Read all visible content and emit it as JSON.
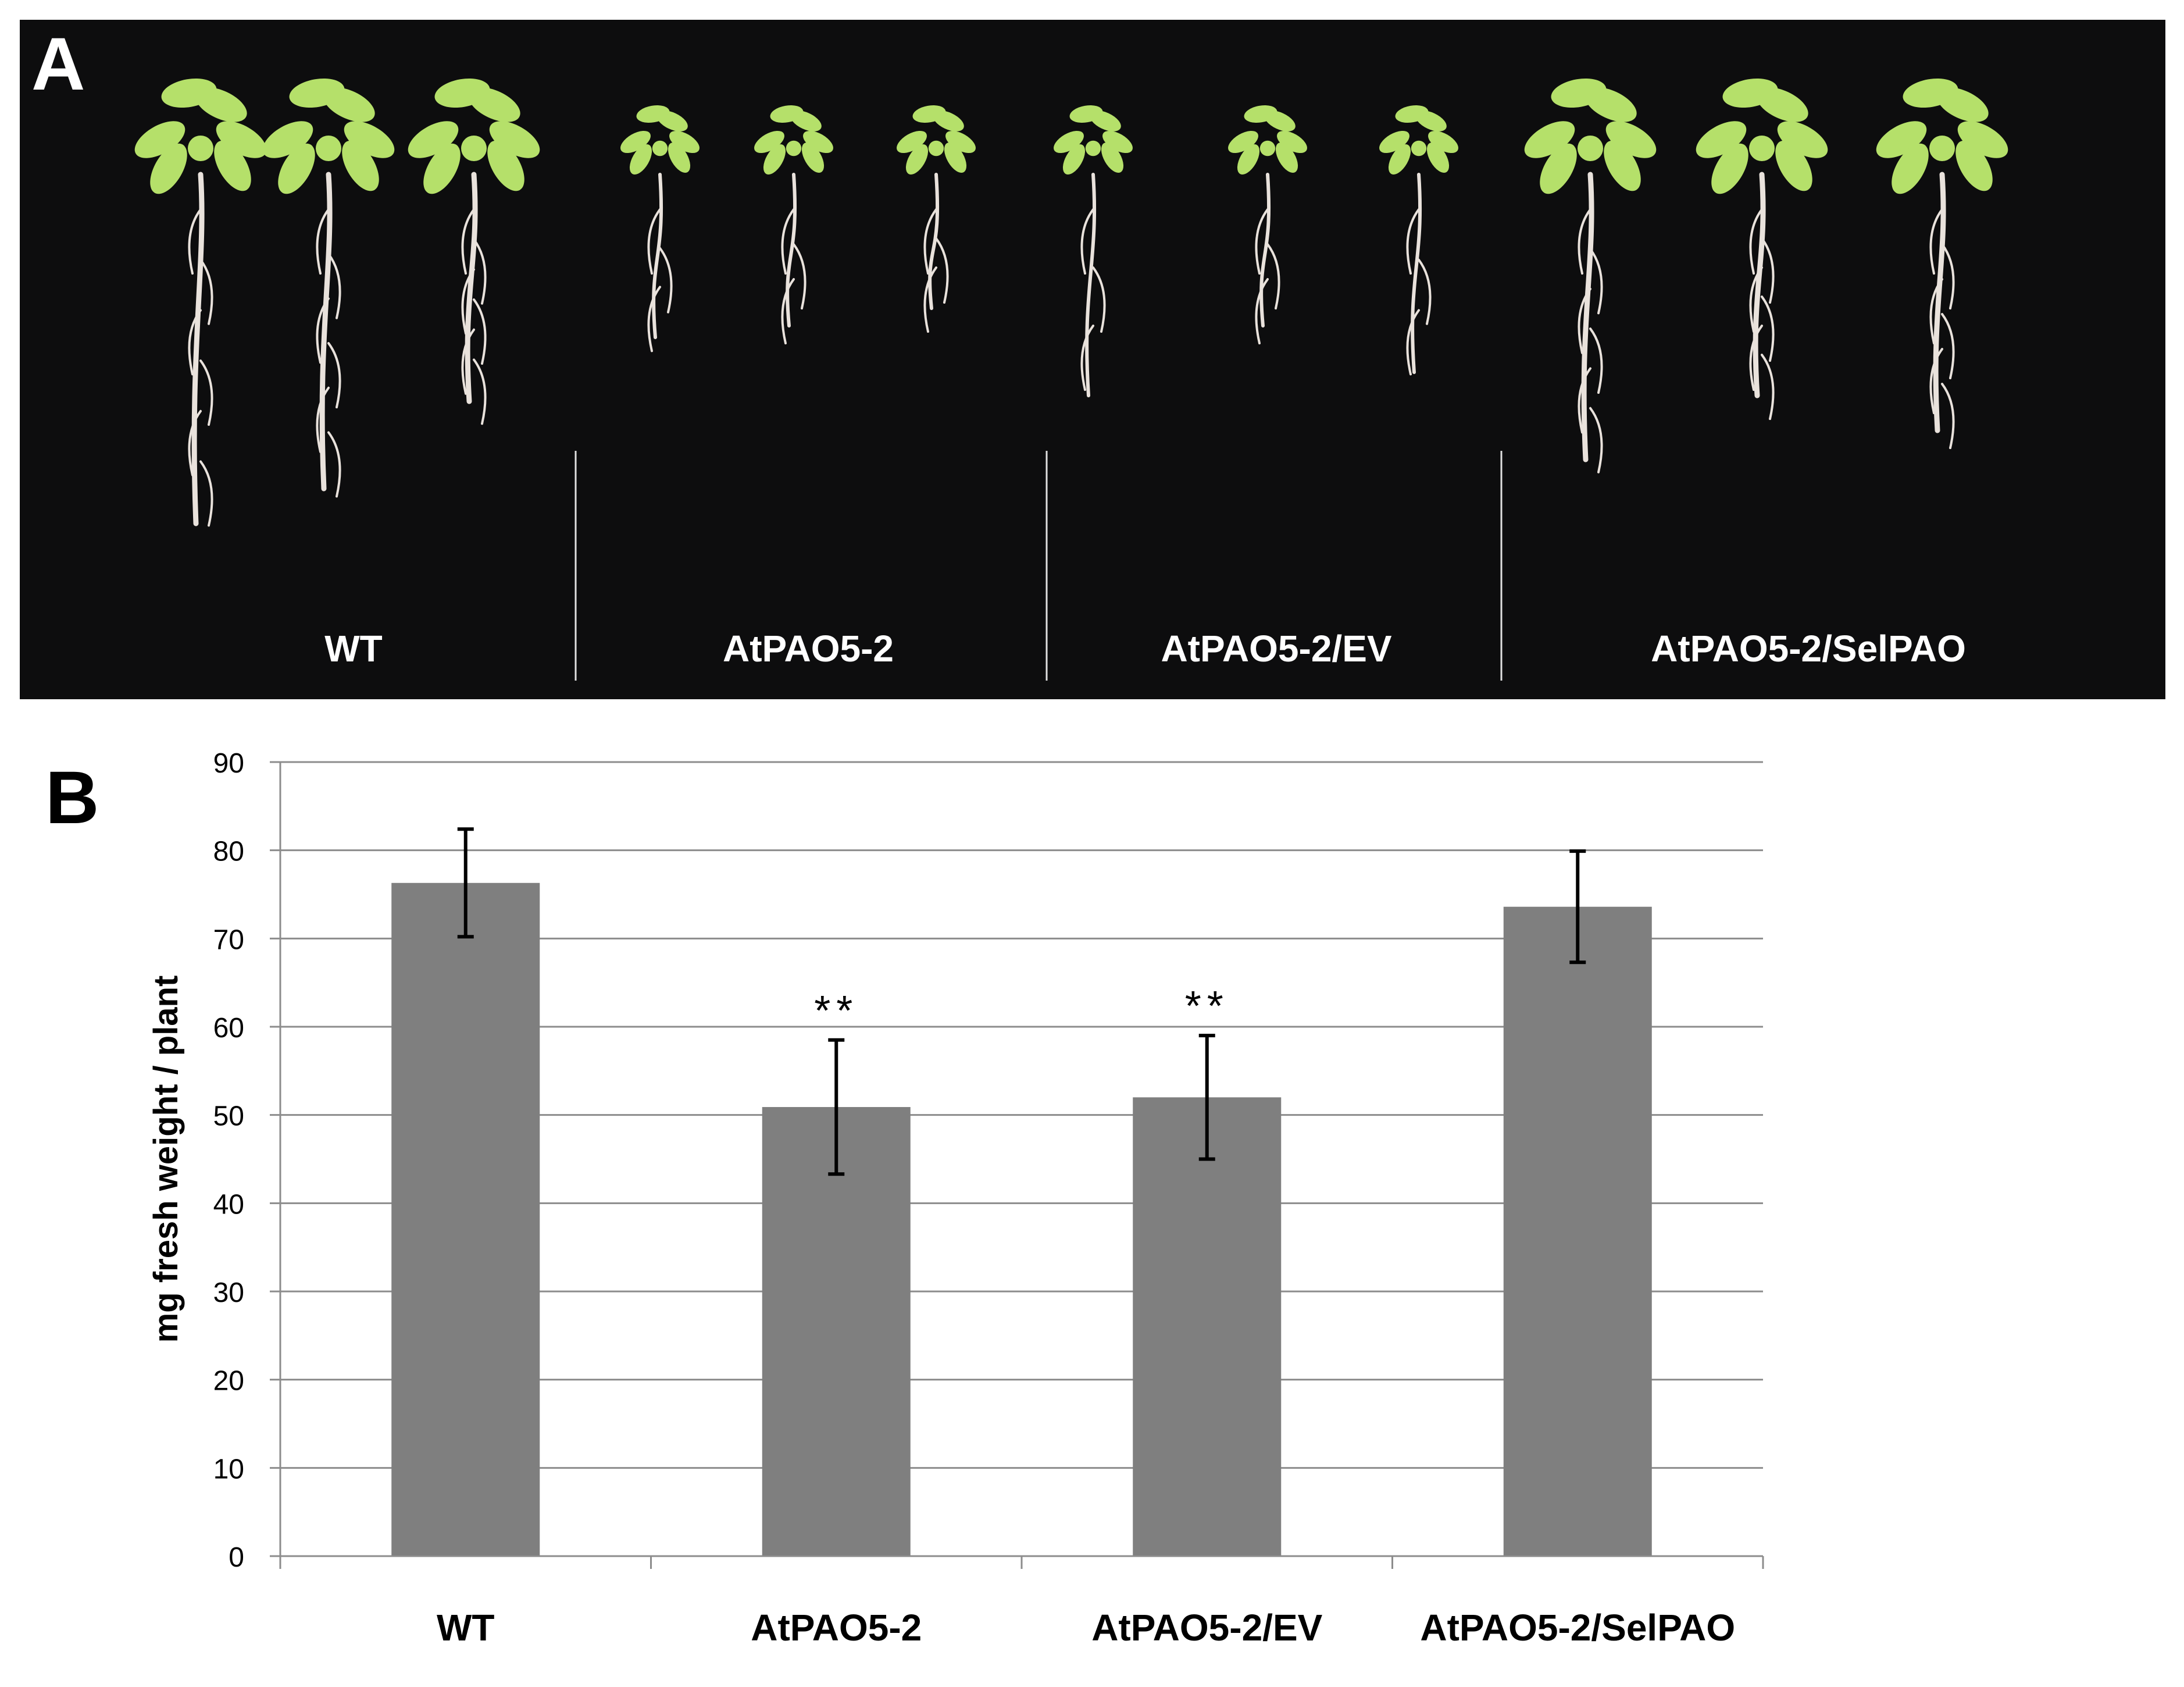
{
  "panel_a": {
    "letter": "A",
    "group_labels": [
      "WT",
      "AtPAO5-2",
      "AtPAO5-2/EV",
      "AtPAO5-2/SelPAO"
    ],
    "background_color": "#0d0d0e",
    "leaf_color": "#b5e06a",
    "root_color": "#e9e2dc",
    "label_color": "#ffffff"
  },
  "panel_b": {
    "letter": "B"
  },
  "chart_data": {
    "type": "bar",
    "categories": [
      "WT",
      "AtPAO5-2",
      "AtPAO5-2/EV",
      "AtPAO5-2/SelPAO"
    ],
    "series": [
      {
        "values": [
          76.3,
          50.9,
          52.0,
          73.6
        ],
        "error": [
          6.1,
          7.6,
          7.0,
          6.3
        ],
        "color": "#7f7f7f"
      }
    ],
    "annotations": [
      "",
      "**",
      "**",
      ""
    ],
    "xlabel": "",
    "ylabel": "mg fresh weight / plant",
    "ylim": [
      0,
      90
    ],
    "yticks": [
      0,
      10,
      20,
      30,
      40,
      50,
      60,
      70,
      80,
      90
    ],
    "grid": true,
    "legend": "none"
  }
}
